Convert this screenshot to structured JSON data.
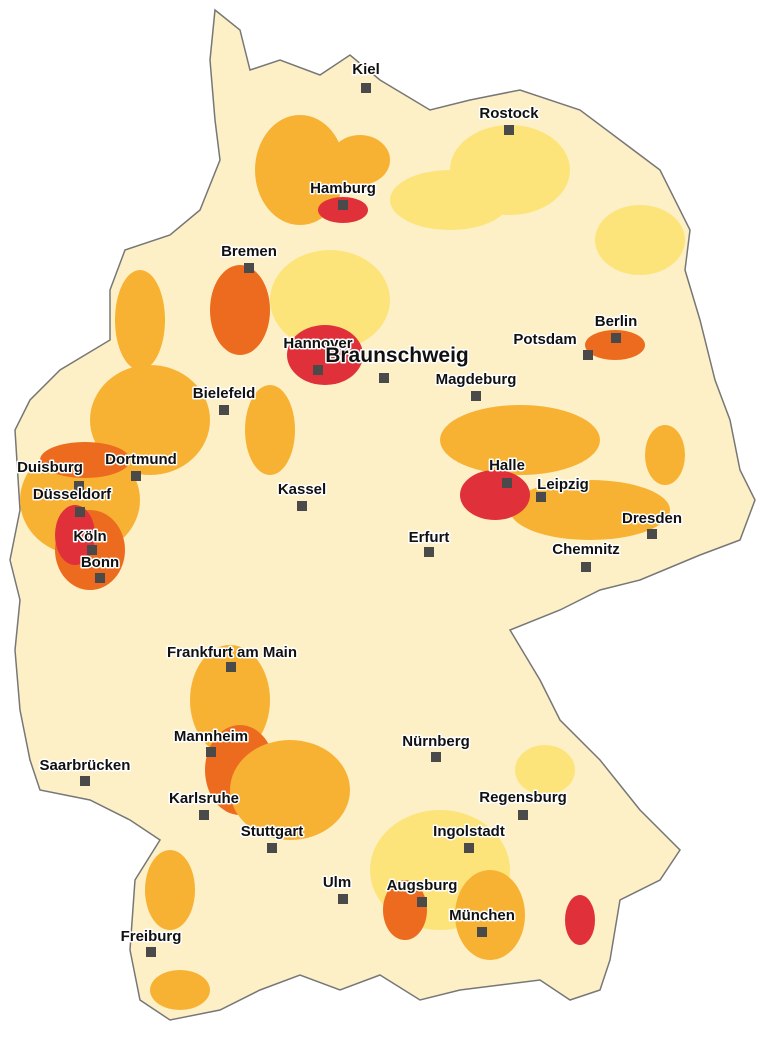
{
  "cities": [
    "Kiel",
    "Rostock",
    "Hamburg",
    "Bremen",
    "Hannover",
    "Braunschweig",
    "Berlin",
    "Potsdam",
    "Magdeburg",
    "Bielefeld",
    "Dortmund",
    "Duisburg",
    "Düsseldorf",
    "Köln",
    "Bonn",
    "Kassel",
    "Halle",
    "Leipzig",
    "Dresden",
    "Chemnitz",
    "Erfurt",
    "Frankfurt am Main",
    "Mannheim",
    "Saarbrücken",
    "Nürnberg",
    "Regensburg",
    "Karlsruhe",
    "Ingolstadt",
    "Stuttgart",
    "Ulm",
    "Augsburg",
    "München",
    "Freiburg"
  ]
}
